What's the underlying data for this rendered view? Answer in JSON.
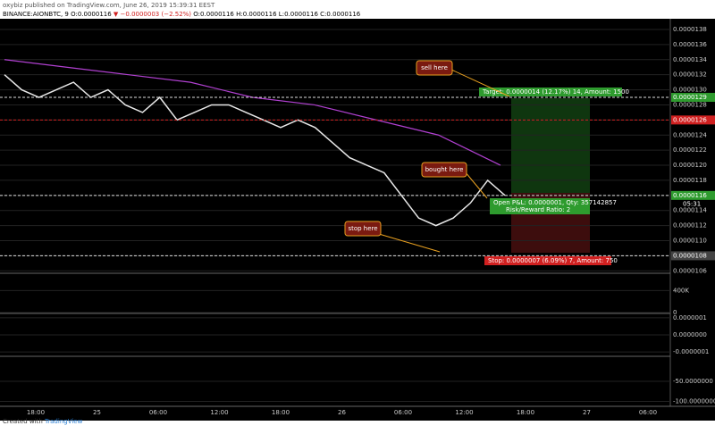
{
  "header": {
    "publisher": "oxybiz published on TradingView.com, June 26, 2019 15:39:31 EEST",
    "symbol": "BINANCE:AIONBTC, 9 O:0.0000116",
    "change": "▼ −0.0000003 (−2.52%)",
    "ohlc": "O:0.0000116 H:0.0000116 L:0.0000116 C:0.0000116"
  },
  "annotations": {
    "sell": "sell here",
    "bought": "bought here",
    "stop": "stop here",
    "target": "Target: 0.0000014 (12.17%) 14, Amount: 1500",
    "pnl": "Open P&L: 0.0000001, Qty: 357142857",
    "ratio": "Risk/Reward Ratio: 2",
    "stop_info": "Stop: 0.0000007 (6.09%) 7, Amount: 750",
    "countdown": "05:31"
  },
  "chart_data": {
    "type": "line",
    "ylim": [
      1.058e-05,
      1.393e-05
    ],
    "yticks": [
      1.06e-05,
      1.08e-05,
      {
        "value": 1.1e-05,
        "label": "0.0000110"
      },
      1.12e-05,
      1.14e-05,
      1.16e-05,
      1.18e-05,
      {
        "value": 1.2e-05,
        "label": "0.0000120"
      },
      1.22e-05,
      1.24e-05,
      1.26e-05,
      1.28e-05,
      {
        "value": 1.3e-05,
        "label": "0.0000130"
      },
      1.32e-05,
      1.34e-05,
      1.36e-05,
      1.38e-05
    ],
    "grid": true,
    "series": [
      {
        "color": "#e8e8e8",
        "values": [
          1.32e-05,
          1.3e-05,
          1.29e-05,
          1.3e-05,
          1.31e-05,
          1.29e-05,
          1.3e-05,
          1.28e-05,
          1.27e-05,
          1.29e-05,
          1.26e-05,
          1.27e-05,
          1.28e-05,
          1.28e-05,
          1.27e-05,
          1.26e-05,
          1.25e-05,
          1.26e-05,
          1.25e-05,
          1.23e-05,
          1.21e-05,
          1.2e-05,
          1.19e-05,
          1.16e-05,
          1.13e-05,
          1.12e-05,
          1.13e-05,
          1.15e-05,
          1.18e-05,
          1.16e-05
        ]
      },
      {
        "color": "#b040d0",
        "values": [
          1.34e-05,
          1.33e-05,
          1.32e-05,
          1.31e-05,
          1.29e-05,
          1.28e-05,
          1.26e-05,
          1.24e-05,
          1.2e-05
        ]
      }
    ],
    "price_labels": [
      {
        "value": 1.29e-05,
        "label": "0.0000129",
        "color": "#2e9b2e"
      },
      {
        "value": 1.26e-05,
        "label": "0.0000126",
        "color": "#d02020"
      },
      {
        "value": 1.16e-05,
        "label": "0.0000116",
        "color": "#2e9b2e"
      },
      {
        "value": 1.08e-05,
        "label": "0.0000108",
        "color": "#444444"
      }
    ],
    "time_labels": [
      "18:00",
      "25",
      "06:00",
      "12:00",
      "18:00",
      "26",
      "06:00",
      "12:00",
      "18:00",
      "27",
      "06:00"
    ],
    "volume_ticks": [
      {
        "value": 400000,
        "label": "400K"
      },
      0
    ],
    "volume_ylim": [
      0,
      700000
    ],
    "osc_ticks": [
      {
        "value": 1e-07,
        "label": "0.0000001"
      },
      {
        "value": 0,
        "label": "0.0000000"
      },
      {
        "value": -1e-07,
        "label": "-0.0000001"
      }
    ],
    "osc_ylim": [
      -1.2e-07,
      1.2e-07
    ],
    "osc2_ticks": [
      {
        "value": -50,
        "label": "-50.0000000"
      },
      {
        "value": -100,
        "label": "-100.0000000"
      }
    ],
    "osc2_ylim": [
      -110,
      10
    ]
  },
  "footer": {
    "credit": "Created with",
    "brand": "TradingView"
  }
}
